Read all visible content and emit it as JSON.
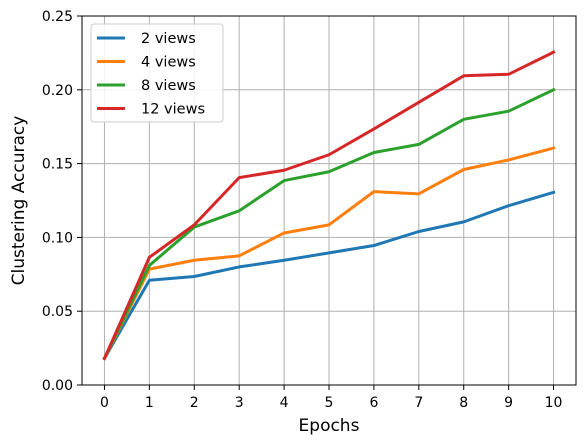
{
  "chart_data": {
    "type": "line",
    "x": [
      0,
      1,
      2,
      3,
      4,
      5,
      6,
      7,
      8,
      9,
      10
    ],
    "xlabel": "Epochs",
    "ylabel": "Clustering Accuracy",
    "xlim": [
      -0.5,
      10.5
    ],
    "ylim": [
      0,
      0.25
    ],
    "xticks": [
      "0",
      "1",
      "2",
      "3",
      "4",
      "5",
      "6",
      "7",
      "8",
      "9",
      "10"
    ],
    "yticks": [
      "0.00",
      "0.05",
      "0.10",
      "0.15",
      "0.20",
      "0.25"
    ],
    "ytick_values": [
      0,
      0.05,
      0.1,
      0.15,
      0.2,
      0.25
    ],
    "grid": true,
    "legend_position": "top-left",
    "series": [
      {
        "name": "2 views",
        "color": "#1f77b4",
        "values": [
          0.018,
          0.071,
          0.0735,
          0.08,
          0.0845,
          0.0895,
          0.0945,
          0.104,
          0.1105,
          0.1215,
          0.1305
        ]
      },
      {
        "name": "4 views",
        "color": "#ff7f0e",
        "values": [
          0.018,
          0.0785,
          0.0845,
          0.0875,
          0.103,
          0.1085,
          0.131,
          0.1295,
          0.146,
          0.1525,
          0.1605
        ]
      },
      {
        "name": "8 views",
        "color": "#2ca02c",
        "values": [
          0.018,
          0.081,
          0.107,
          0.118,
          0.1385,
          0.1445,
          0.1575,
          0.163,
          0.18,
          0.1855,
          0.2
        ]
      },
      {
        "name": "12 views",
        "color": "#d62728",
        "values": [
          0.018,
          0.0865,
          0.1085,
          0.1405,
          0.1455,
          0.156,
          0.1735,
          0.1915,
          0.2095,
          0.2105,
          0.2255
        ]
      }
    ]
  }
}
